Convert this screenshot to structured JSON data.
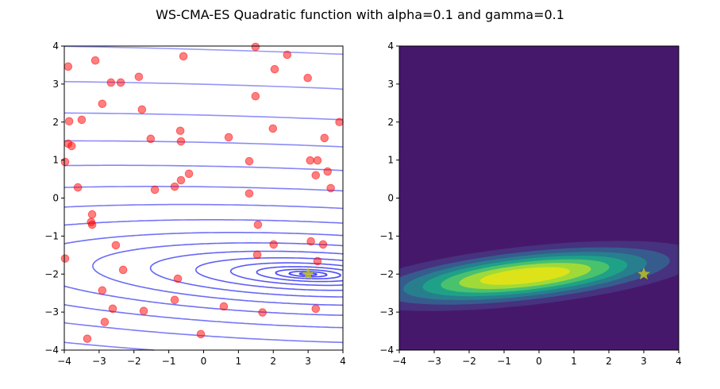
{
  "title": "WS-CMA-ES Quadratic function with alpha=0.1 and gamma=0.1",
  "chart_data": [
    {
      "type": "scatter",
      "background": "contour",
      "contour_color": "#0000ee",
      "minimum": [
        3,
        -2
      ],
      "xlim": [
        -4,
        4
      ],
      "ylim": [
        -4,
        4
      ],
      "xticks": [
        "-4",
        "-3",
        "-2",
        "-1",
        "0",
        "1",
        "2",
        "3",
        "4"
      ],
      "yticks": [
        "-4",
        "-3",
        "-2",
        "-1",
        "0",
        "1",
        "2",
        "3",
        "4"
      ],
      "grid": false,
      "point_color": "#ff0000",
      "star_color": "#bcbd22",
      "star": [
        3,
        -2
      ],
      "points": [
        [
          -3.89,
          3.46
        ],
        [
          -3.11,
          3.62
        ],
        [
          -3.86,
          2.02
        ],
        [
          -3.5,
          2.06
        ],
        [
          -3.89,
          1.43
        ],
        [
          -3.79,
          1.37
        ],
        [
          -4.0,
          0.95
        ],
        [
          -3.61,
          0.28
        ],
        [
          -2.91,
          2.48
        ],
        [
          -2.66,
          3.04
        ],
        [
          -2.38,
          3.04
        ],
        [
          -1.86,
          3.19
        ],
        [
          -1.77,
          2.33
        ],
        [
          -1.52,
          1.56
        ],
        [
          -1.4,
          0.22
        ],
        [
          -0.67,
          1.77
        ],
        [
          -0.65,
          1.49
        ],
        [
          -0.65,
          0.47
        ],
        [
          -0.83,
          0.3
        ],
        [
          -0.42,
          0.64
        ],
        [
          -0.58,
          3.73
        ],
        [
          1.49,
          3.98
        ],
        [
          2.4,
          3.77
        ],
        [
          2.04,
          3.39
        ],
        [
          2.99,
          3.16
        ],
        [
          1.49,
          2.68
        ],
        [
          3.9,
          2.0
        ],
        [
          1.99,
          1.83
        ],
        [
          0.72,
          1.6
        ],
        [
          3.47,
          1.58
        ],
        [
          1.31,
          0.97
        ],
        [
          3.06,
          0.99
        ],
        [
          3.27,
          0.99
        ],
        [
          3.56,
          0.7
        ],
        [
          3.22,
          0.6
        ],
        [
          3.65,
          0.26
        ],
        [
          1.31,
          0.12
        ],
        [
          -3.2,
          -0.43
        ],
        [
          -3.23,
          -0.63
        ],
        [
          -3.2,
          -0.7
        ],
        [
          1.56,
          -0.7
        ],
        [
          -2.52,
          -1.24
        ],
        [
          2.01,
          -1.22
        ],
        [
          3.08,
          -1.14
        ],
        [
          3.43,
          -1.22
        ],
        [
          -4.0,
          -1.59
        ],
        [
          1.54,
          -1.49
        ],
        [
          3.27,
          -1.66
        ],
        [
          -2.31,
          -1.89
        ],
        [
          -0.74,
          -2.12
        ],
        [
          -2.91,
          -2.43
        ],
        [
          -0.83,
          -2.68
        ],
        [
          -2.61,
          -2.91
        ],
        [
          -1.72,
          -2.97
        ],
        [
          0.58,
          -2.85
        ],
        [
          1.69,
          -3.01
        ],
        [
          3.22,
          -2.91
        ],
        [
          -2.84,
          -3.26
        ],
        [
          -0.08,
          -3.58
        ],
        [
          -3.34,
          -3.7
        ]
      ]
    },
    {
      "type": "heatmap",
      "style": "filled-contour",
      "colormap": "viridis",
      "colors": [
        "#46186b",
        "#46327e",
        "#365c8d",
        "#277f8e",
        "#1fa187",
        "#4ac16d",
        "#a0da39",
        "#dde318"
      ],
      "gaussian_mean": [
        -0.4,
        -2.05
      ],
      "gaussian_std_major": 2.5,
      "gaussian_std_minor": 0.38,
      "gaussian_slope": 0.1,
      "xlim": [
        -4,
        4
      ],
      "ylim": [
        -4,
        4
      ],
      "xticks": [
        "-4",
        "-3",
        "-2",
        "-1",
        "0",
        "1",
        "2",
        "3",
        "4"
      ],
      "yticks": [
        "-4",
        "-3",
        "-2",
        "-1",
        "0",
        "1",
        "2",
        "3",
        "4"
      ],
      "star_color": "#bcbd22",
      "star": [
        3,
        -2
      ]
    }
  ]
}
